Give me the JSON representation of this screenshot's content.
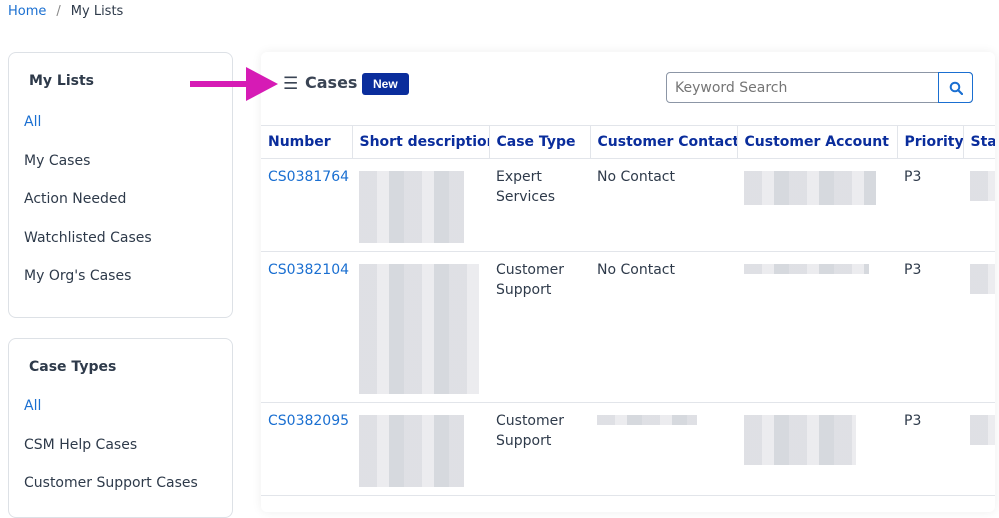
{
  "breadcrumb": [
    {
      "label": "Home"
    },
    {
      "label": "My Lists"
    }
  ],
  "my_lists": {
    "title": "My Lists",
    "items": [
      "All",
      "My Cases",
      "Action Needed",
      "Watchlisted Cases",
      "My Org's Cases"
    ]
  },
  "case_types": {
    "title": "Case Types",
    "items": [
      "All",
      "CSM Help Cases",
      "Customer Support Cases"
    ]
  },
  "main": {
    "title": "Cases",
    "new_label": "New",
    "search_placeholder": "Keyword Search"
  },
  "table": {
    "columns": [
      "Number",
      "Short description",
      "Case Type",
      "Customer Contact",
      "Customer Account",
      "Priority",
      "Sta"
    ],
    "rows": [
      {
        "number": "CS0381764",
        "case_type": "Expert Services",
        "contact": "No Contact",
        "priority": "P3"
      },
      {
        "number": "CS0382104",
        "case_type": "Customer Support",
        "contact": "No Contact",
        "priority": "P3"
      },
      {
        "number": "CS0382095",
        "case_type": "Customer Support",
        "contact": "",
        "priority": "P3"
      }
    ]
  },
  "colors": {
    "accent": "#0a2d9c",
    "link": "#1a6fd1",
    "arrow": "#d61bb5"
  }
}
